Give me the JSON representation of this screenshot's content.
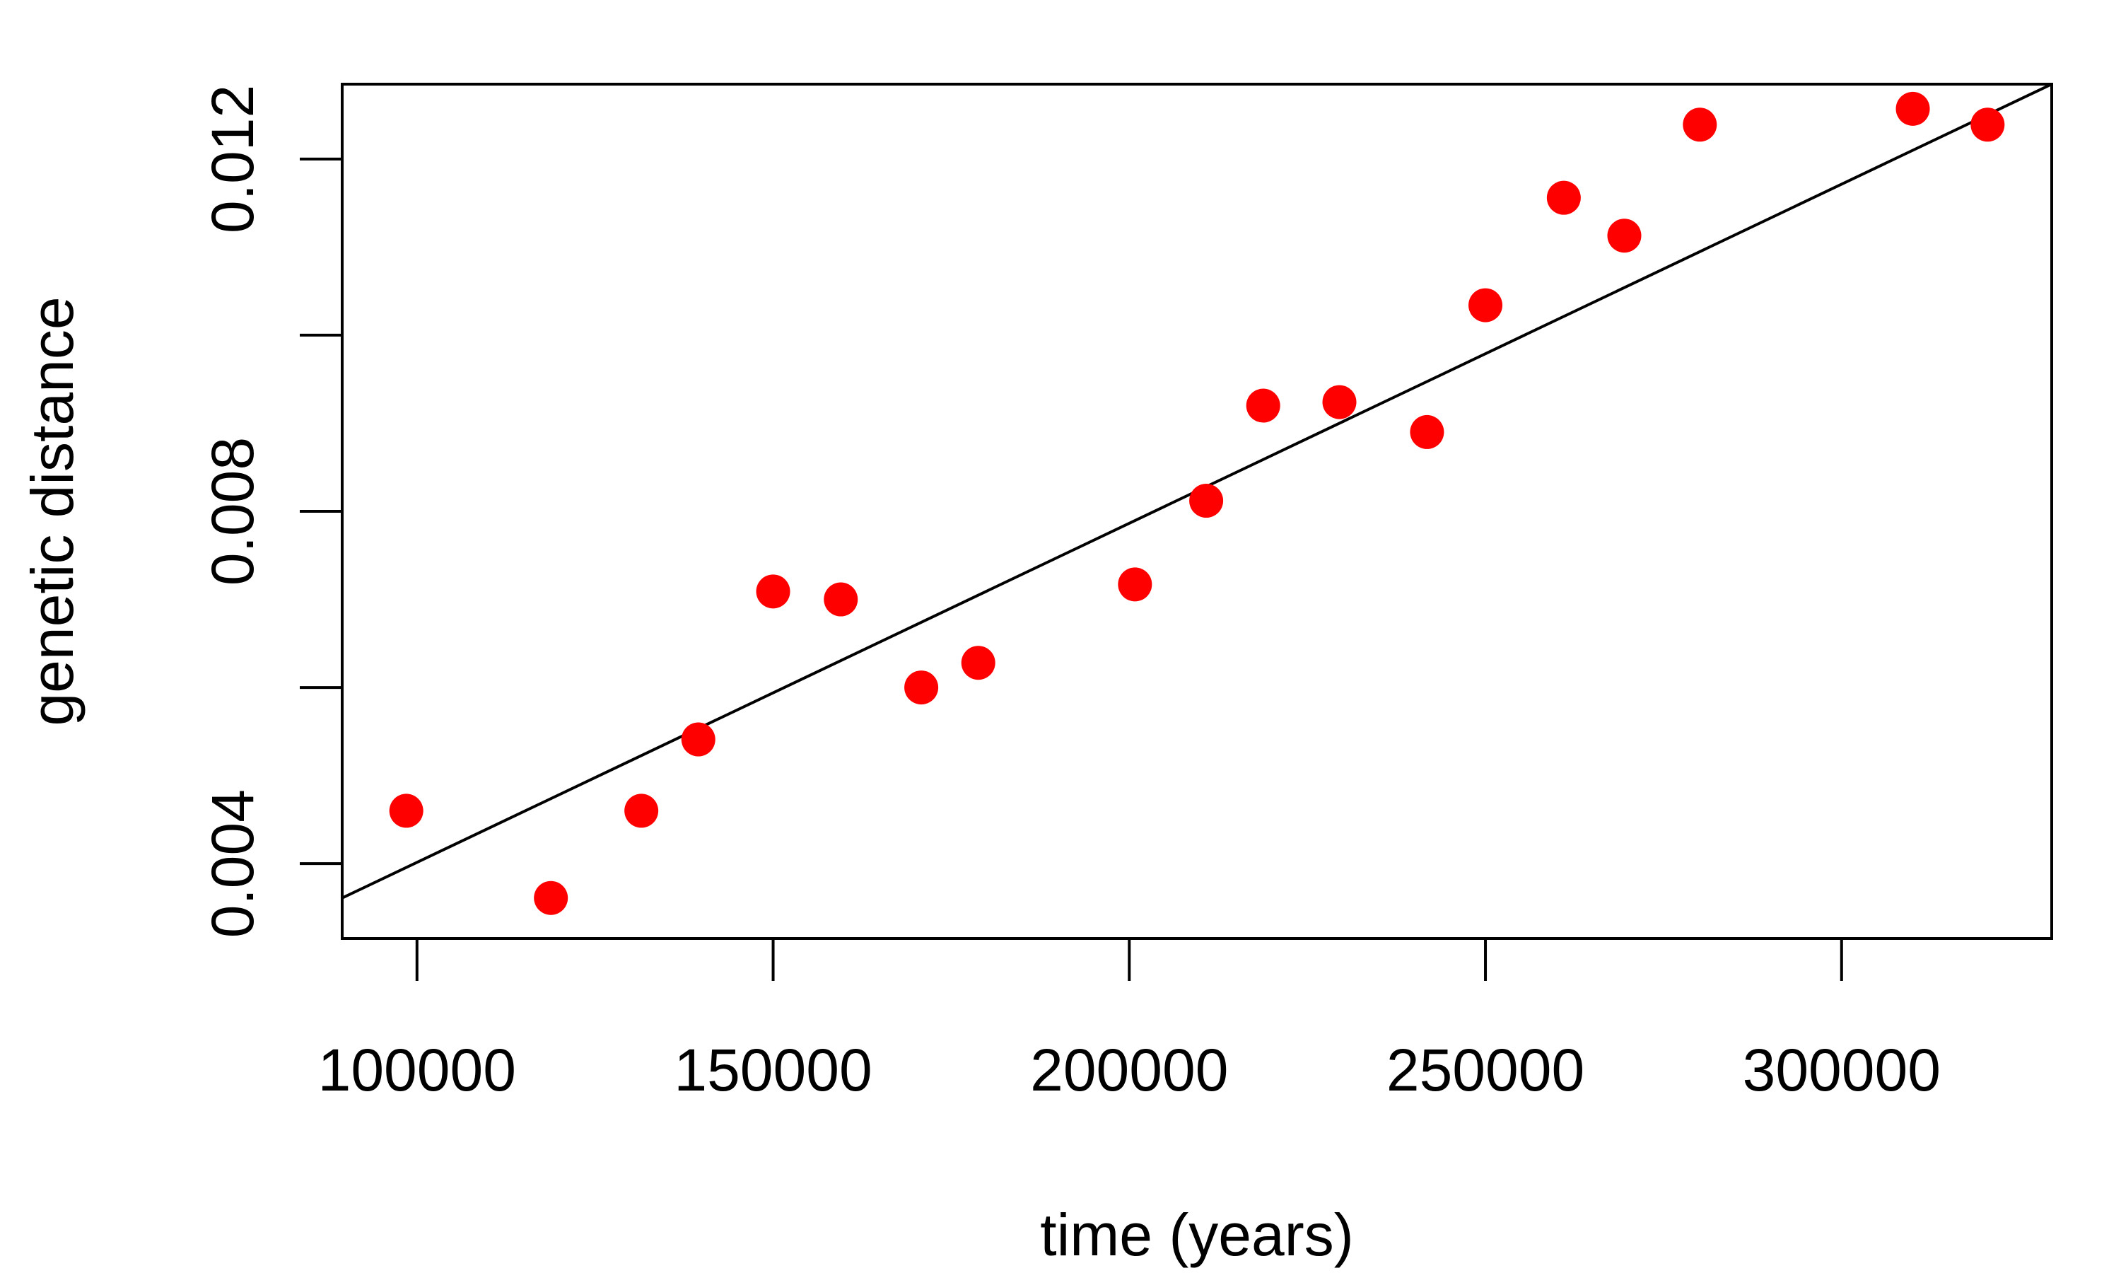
{
  "chart_data": {
    "type": "scatter",
    "xlabel": "time (years)",
    "ylabel": "genetic distance",
    "xlim": [
      89500,
      329500
    ],
    "ylim": [
      0.00315,
      0.01285
    ],
    "x_ticks": [
      100000,
      150000,
      200000,
      250000,
      300000
    ],
    "x_tick_labels": [
      "100000",
      "150000",
      "200000",
      "250000",
      "300000"
    ],
    "y_ticks": [
      0.004,
      0.006,
      0.008,
      0.01,
      0.012
    ],
    "y_tick_labels": [
      "0.004",
      "",
      "0.008",
      "",
      "0.012"
    ],
    "grid": false,
    "point_color": "#ff0000",
    "line_color": "#000000",
    "points": [
      {
        "x": 98500,
        "y": 0.0046
      },
      {
        "x": 118800,
        "y": 0.00361
      },
      {
        "x": 131500,
        "y": 0.0046
      },
      {
        "x": 139500,
        "y": 0.00541
      },
      {
        "x": 150000,
        "y": 0.00709
      },
      {
        "x": 159500,
        "y": 0.007
      },
      {
        "x": 170800,
        "y": 0.006
      },
      {
        "x": 178800,
        "y": 0.00628
      },
      {
        "x": 200800,
        "y": 0.00717
      },
      {
        "x": 210800,
        "y": 0.00812
      },
      {
        "x": 218800,
        "y": 0.0092
      },
      {
        "x": 229500,
        "y": 0.00924
      },
      {
        "x": 241800,
        "y": 0.0089
      },
      {
        "x": 250000,
        "y": 0.01034
      },
      {
        "x": 261000,
        "y": 0.01156
      },
      {
        "x": 269500,
        "y": 0.01113
      },
      {
        "x": 280100,
        "y": 0.01239
      },
      {
        "x": 310000,
        "y": 0.01257
      },
      {
        "x": 320500,
        "y": 0.01239
      }
    ],
    "trendline": {
      "x": [
        89500,
        329500
      ],
      "y": [
        0.00361,
        0.01285
      ]
    }
  }
}
